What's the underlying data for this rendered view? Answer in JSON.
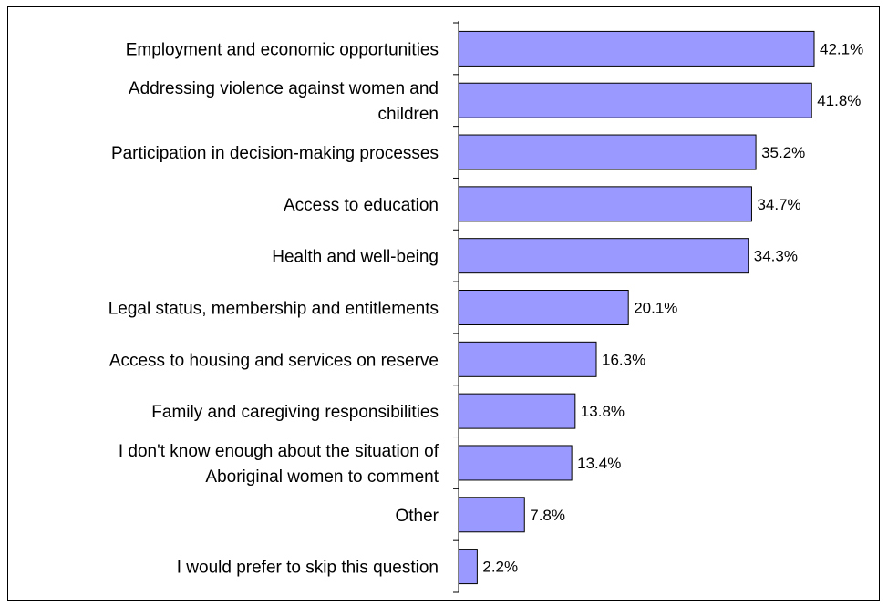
{
  "chart_data": {
    "type": "bar",
    "orientation": "horizontal",
    "categories": [
      [
        "Employment and economic opportunities"
      ],
      [
        "Addressing violence against women and",
        "children"
      ],
      [
        "Participation in decision-making processes"
      ],
      [
        "Access to education"
      ],
      [
        "Health and well-being"
      ],
      [
        "Legal status, membership and entitlements"
      ],
      [
        "Access to housing and services on reserve"
      ],
      [
        "Family and caregiving responsibilities"
      ],
      [
        "I don't know enough about the situation of",
        "Aboriginal women to comment"
      ],
      [
        "Other"
      ],
      [
        "I would prefer to skip this question"
      ]
    ],
    "values": [
      42.1,
      41.8,
      35.2,
      34.7,
      34.3,
      20.1,
      16.3,
      13.8,
      13.4,
      7.8,
      2.2
    ],
    "value_labels": [
      "42.1%",
      "41.8%",
      "35.2%",
      "34.7%",
      "34.3%",
      "20.1%",
      "16.3%",
      "13.8%",
      "13.4%",
      "7.8%",
      "2.2%"
    ],
    "xlim": [
      0,
      45
    ],
    "grid": false,
    "legend": "none",
    "bar_color": "#9999ff",
    "bar_edge_color": "#000000"
  }
}
